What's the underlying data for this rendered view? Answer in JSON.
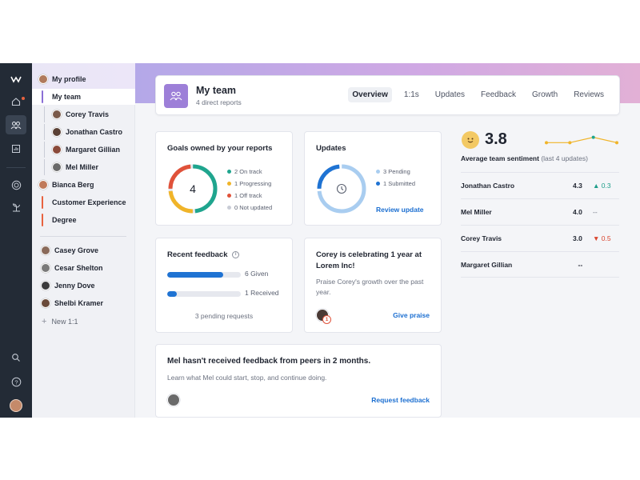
{
  "sidebar": {
    "my_profile": "My profile",
    "my_team": "My team",
    "reports": [
      {
        "name": "Corey Travis",
        "avatar_color": "#7a5a4a"
      },
      {
        "name": "Jonathan Castro",
        "avatar_color": "#5a4035"
      },
      {
        "name": "Margaret Gillian",
        "avatar_color": "#8a4a3a"
      },
      {
        "name": "Mel Miller",
        "avatar_color": "#6a6a6a"
      }
    ],
    "people": [
      {
        "name": "Bianca Berg",
        "bar_color": "#e8623f",
        "avatar_color": "#c07a5a"
      },
      {
        "name": "Customer Experience",
        "bar_color": "#e8623f"
      },
      {
        "name": "Degree",
        "bar_color": "#e8623f"
      }
    ],
    "one_on_ones": [
      {
        "name": "Casey Grove",
        "avatar_color": "#8a6a5a"
      },
      {
        "name": "Cesar Shelton",
        "avatar_color": "#7a7a7a"
      },
      {
        "name": "Jenny Dove",
        "avatar_color": "#3a3a3a"
      },
      {
        "name": "Shelbi Kramer",
        "avatar_color": "#6a4a3a"
      }
    ],
    "new_1on1": "New 1:1"
  },
  "header": {
    "title": "My team",
    "subtitle": "4 direct reports",
    "tabs": [
      "Overview",
      "1:1s",
      "Updates",
      "Feedback",
      "Growth",
      "Reviews"
    ],
    "active_tab": "Overview"
  },
  "goals": {
    "title": "Goals owned by your reports",
    "total": "4",
    "legend": [
      {
        "label": "2 On track",
        "color": "#1fa58e",
        "value": 2
      },
      {
        "label": "1 Progressing",
        "color": "#f0b429",
        "value": 1
      },
      {
        "label": "1 Off track",
        "color": "#e0523a",
        "value": 1
      },
      {
        "label": "0 Not updated",
        "color": "#c9ccd6",
        "value": 0
      }
    ]
  },
  "updates": {
    "title": "Updates",
    "legend": [
      {
        "label": "3 Pending",
        "color": "#a9cdf0",
        "value": 3
      },
      {
        "label": "1 Submitted",
        "color": "#1f73d3",
        "value": 1
      }
    ],
    "link": "Review update"
  },
  "recent_feedback": {
    "title": "Recent feedback",
    "given": "6 Given",
    "given_fraction": 0.76,
    "received": "1 Received",
    "received_fraction": 0.13,
    "pending": "3 pending requests"
  },
  "celebration": {
    "title": "Corey is celebrating 1 year at Lorem Inc!",
    "body": "Praise Corey's growth over the past year.",
    "badge": "1",
    "link": "Give praise"
  },
  "mel_card": {
    "title": "Mel hasn't received feedback from peers in 2 months.",
    "body": "Learn what Mel could start, stop, and continue doing.",
    "link": "Request feedback"
  },
  "sentiment": {
    "score": "3.8",
    "label": "Average team sentiment",
    "sub": "(last 4 updates)",
    "trend": [
      3.6,
      3.6,
      4.1,
      3.6
    ],
    "trend_colors": [
      "#f0b429",
      "#f0b429",
      "#1fa58e",
      "#f0b429"
    ],
    "rows": [
      {
        "name": "Jonathan Castro",
        "score": "4.3",
        "delta": "▲ 0.3",
        "dir": "up"
      },
      {
        "name": "Mel Miller",
        "score": "4.0",
        "delta": "--",
        "dir": "flat"
      },
      {
        "name": "Corey Travis",
        "score": "3.0",
        "delta": "▼ 0.5",
        "dir": "down"
      },
      {
        "name": "Margaret Gillian",
        "score": "--",
        "delta": "",
        "dir": "flat"
      }
    ]
  }
}
